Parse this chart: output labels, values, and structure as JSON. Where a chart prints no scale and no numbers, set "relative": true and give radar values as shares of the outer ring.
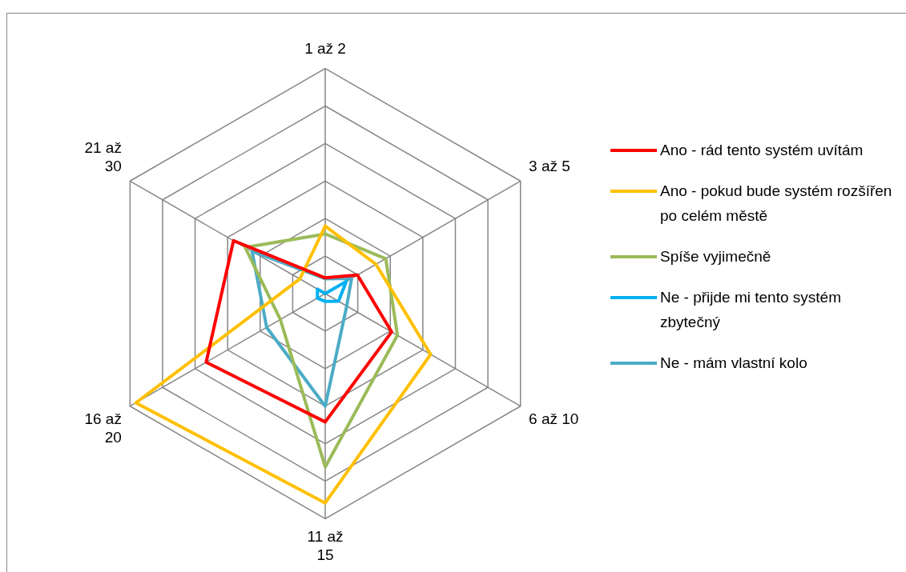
{
  "chart_data": {
    "type": "radar",
    "relative": true,
    "legend": "right",
    "grid": true,
    "marker": "none",
    "line_style": "solid",
    "categories": [
      "1 až 2",
      "3 až 5",
      "6 až 10",
      "11 až 15",
      "16 až 20",
      "21 až 30"
    ],
    "series": [
      {
        "name": "Ano - rád tento systém uvítám",
        "color": "#ff0000",
        "values": [
          0.07,
          0.165,
          0.34,
          0.57,
          0.61,
          0.47
        ]
      },
      {
        "name": "Ano - pokud bude systém rozšířen po celém městě",
        "color": "#ffc000",
        "values": [
          0.3,
          0.26,
          0.54,
          0.93,
          0.97,
          0.13
        ]
      },
      {
        "name": "Spíše vyjimečně",
        "color": "#9bbb59",
        "values": [
          0.265,
          0.31,
          0.37,
          0.77,
          0.23,
          0.41
        ]
      },
      {
        "name": "Ne - přijde mi tento systém zbytečný",
        "color": "#00b0f0",
        "values": [
          0,
          0.108,
          0.068,
          0.035,
          0.04,
          0.04
        ]
      },
      {
        "name": "Ne - mám vlastní kolo",
        "color": "#4bacc6",
        "values": [
          0.066,
          0.135,
          0.11,
          0.5,
          0.3,
          0.375
        ]
      }
    ]
  }
}
